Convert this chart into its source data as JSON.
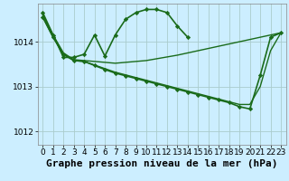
{
  "background_color": "#cceeff",
  "plot_bg_color": "#cceeff",
  "grid_color": "#aacccc",
  "line_color": "#1a6b1a",
  "marker_color": "#1a6b1a",
  "title": "Graphe pression niveau de la mer (hPa)",
  "ylim": [
    1011.7,
    1014.85
  ],
  "xlim": [
    -0.5,
    23.5
  ],
  "yticks": [
    1012,
    1013,
    1014
  ],
  "xticks": [
    0,
    1,
    2,
    3,
    4,
    5,
    6,
    7,
    8,
    9,
    10,
    11,
    12,
    13,
    14,
    15,
    16,
    17,
    18,
    19,
    20,
    21,
    22,
    23
  ],
  "title_fontsize": 8,
  "tick_fontsize": 6.5,
  "series": [
    {
      "x": [
        0,
        1,
        2,
        3,
        4,
        5,
        6,
        7,
        8,
        9,
        10,
        11,
        12,
        13,
        14,
        15,
        16,
        17,
        18,
        19,
        20,
        21,
        22,
        23
      ],
      "y": [
        1014.6,
        1014.15,
        1013.75,
        1013.6,
        1013.58,
        1013.56,
        1013.54,
        1013.52,
        1013.54,
        1013.56,
        1013.58,
        1013.62,
        1013.66,
        1013.7,
        1013.75,
        1013.8,
        1013.85,
        1013.9,
        1013.95,
        1014.0,
        1014.05,
        1014.1,
        1014.15,
        1014.2
      ],
      "has_markers": false,
      "linewidth": 1.0
    },
    {
      "x": [
        0,
        1,
        2,
        3,
        4,
        5,
        6,
        7,
        8,
        9,
        10,
        11,
        12,
        13,
        14,
        15,
        16,
        17,
        18,
        19,
        20,
        21,
        22,
        23
      ],
      "y": [
        1014.55,
        1014.1,
        1013.72,
        1013.58,
        1013.56,
        1013.48,
        1013.4,
        1013.32,
        1013.26,
        1013.2,
        1013.14,
        1013.08,
        1013.02,
        1012.96,
        1012.9,
        1012.84,
        1012.78,
        1012.72,
        1012.66,
        1012.6,
        1012.6,
        1013.0,
        1013.8,
        1014.2
      ],
      "has_markers": false,
      "linewidth": 1.0
    },
    {
      "x": [
        0,
        1,
        2,
        3,
        4,
        5,
        6,
        7,
        8,
        9,
        10,
        11,
        12,
        13,
        14,
        15,
        16,
        17,
        18,
        19,
        20,
        21,
        22,
        23
      ],
      "y": [
        1014.55,
        1014.1,
        1013.72,
        1013.58,
        1013.56,
        1013.47,
        1013.38,
        1013.3,
        1013.24,
        1013.18,
        1013.12,
        1013.06,
        1013.0,
        1012.94,
        1012.88,
        1012.82,
        1012.76,
        1012.7,
        1012.64,
        1012.55,
        1012.5,
        1013.25,
        1014.1,
        1014.2
      ],
      "has_markers": true,
      "linewidth": 1.2
    },
    {
      "x": [
        0,
        1,
        2,
        3,
        4,
        5,
        6,
        7,
        8,
        9,
        10,
        11,
        12,
        13,
        14
      ],
      "y": [
        1014.65,
        1014.15,
        1013.65,
        1013.65,
        1013.72,
        1014.15,
        1013.68,
        1014.15,
        1014.5,
        1014.65,
        1014.72,
        1014.72,
        1014.65,
        1014.35,
        1014.1
      ],
      "has_markers": true,
      "linewidth": 1.2
    }
  ]
}
